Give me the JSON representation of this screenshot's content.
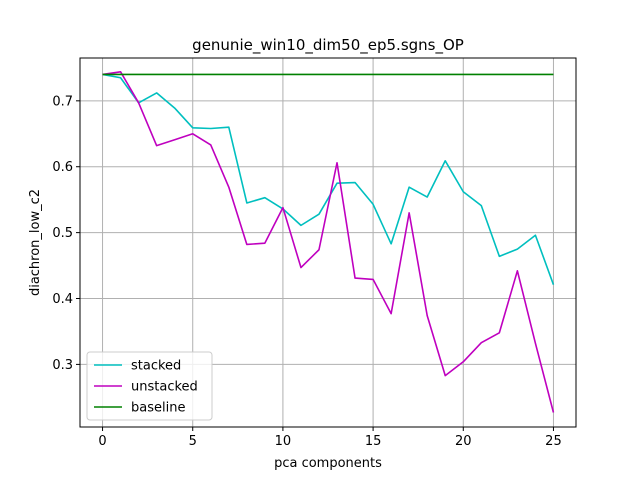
{
  "chart_data": {
    "type": "line",
    "title": "genunie_win10_dim50_ep5.sgns_OP",
    "xlabel": "pca components",
    "ylabel": "diachron_low_c2",
    "xlim": [
      -1.25,
      26.25
    ],
    "ylim": [
      0.205,
      0.765
    ],
    "x_ticks": [
      0,
      5,
      10,
      15,
      20,
      25
    ],
    "x_tick_labels": [
      "0",
      "5",
      "10",
      "15",
      "20",
      "25"
    ],
    "y_ticks": [
      0.3,
      0.4,
      0.5,
      0.6,
      0.7
    ],
    "y_tick_labels": [
      "0.3",
      "0.4",
      "0.5",
      "0.6",
      "0.7"
    ],
    "grid": true,
    "legend_position": "lower-left",
    "x": [
      0,
      1,
      2,
      3,
      4,
      5,
      6,
      7,
      8,
      9,
      10,
      11,
      12,
      13,
      14,
      15,
      16,
      17,
      18,
      19,
      20,
      21,
      22,
      23,
      24,
      25
    ],
    "series": [
      {
        "name": "stacked",
        "color": "#00bfbf",
        "values": [
          0.74,
          0.735,
          0.697,
          0.712,
          0.689,
          0.659,
          0.658,
          0.66,
          0.545,
          0.553,
          0.536,
          0.511,
          0.528,
          0.575,
          0.576,
          0.543,
          0.483,
          0.569,
          0.554,
          0.609,
          0.562,
          0.541,
          0.464,
          0.475,
          0.496,
          0.421
        ]
      },
      {
        "name": "unstacked",
        "color": "#bf00bf",
        "values": [
          0.74,
          0.744,
          0.697,
          0.632,
          0.641,
          0.65,
          0.633,
          0.569,
          0.482,
          0.484,
          0.538,
          0.447,
          0.474,
          0.606,
          0.431,
          0.429,
          0.377,
          0.53,
          0.374,
          0.283,
          0.304,
          0.333,
          0.348,
          0.442,
          0.332,
          0.227
        ]
      },
      {
        "name": "baseline",
        "color": "#008000",
        "values": [
          0.74,
          0.74,
          0.74,
          0.74,
          0.74,
          0.74,
          0.74,
          0.74,
          0.74,
          0.74,
          0.74,
          0.74,
          0.74,
          0.74,
          0.74,
          0.74,
          0.74,
          0.74,
          0.74,
          0.74,
          0.74,
          0.74,
          0.74,
          0.74,
          0.74,
          0.74
        ]
      }
    ]
  }
}
